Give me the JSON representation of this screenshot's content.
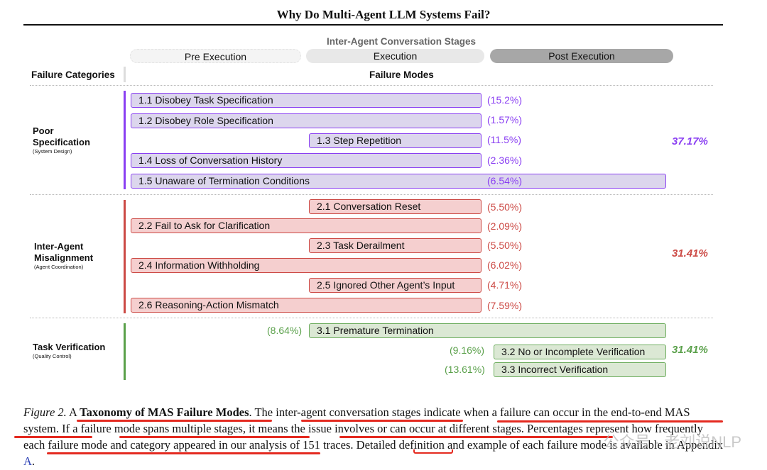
{
  "title": "Why Do Multi-Agent LLM Systems Fail?",
  "stages_header": "Inter-Agent Conversation Stages",
  "stages": [
    "Pre Execution",
    "Execution",
    "Post Execution"
  ],
  "col_failure_categories": "Failure Categories",
  "col_failure_modes": "Failure Modes",
  "categories": [
    {
      "name": "Poor Specification",
      "line1": "Poor",
      "line2": "Specification",
      "sub": "(System Design)",
      "total": "37.17%",
      "color": "#8a3ff2"
    },
    {
      "name": "Inter-Agent Misalignment",
      "line1": "Inter-Agent",
      "line2": "Misalignment",
      "sub": "(Agent Coordination)",
      "total": "31.41%",
      "color": "#cc4a45"
    },
    {
      "name": "Task Verification",
      "line1": "Task Verification",
      "sub": "(Quality Control)",
      "total": "31.41%",
      "color": "#5aa04a"
    }
  ],
  "modes": [
    {
      "label": "1.1 Disobey Task Specification",
      "pct": "(15.2%)"
    },
    {
      "label": "1.2 Disobey Role Specification",
      "pct": "(1.57%)"
    },
    {
      "label": "1.3 Step Repetition",
      "pct": "(11.5%)"
    },
    {
      "label": "1.4 Loss of Conversation History",
      "pct": "(2.36%)"
    },
    {
      "label": "1.5 Unaware of Termination Conditions",
      "pct": "(6.54%)"
    },
    {
      "label": "2.1 Conversation Reset",
      "pct": "(5.50%)"
    },
    {
      "label": "2.2 Fail to Ask for Clarification",
      "pct": "(2.09%)"
    },
    {
      "label": "2.3 Task Derailment",
      "pct": "(5.50%)"
    },
    {
      "label": "2.4 Information Withholding",
      "pct": "(6.02%)"
    },
    {
      "label": "2.5 Ignored Other Agent’s Input",
      "pct": "(4.71%)"
    },
    {
      "label": "2.6 Reasoning-Action Mismatch",
      "pct": "(7.59%)"
    },
    {
      "label": "3.1  Premature Termination",
      "pct": "(8.64%)"
    },
    {
      "label": "3.2 No or Incomplete Verification",
      "pct": "(9.16%)"
    },
    {
      "label": "3.3 Incorrect Verification",
      "pct": "(13.61%)"
    }
  ],
  "caption": {
    "fig_label": "Figure 2.",
    "a": "A",
    "bold": "Taxonomy of MAS Failure Modes",
    "text1": ". The inter-agent conversation stages indicate when a failure can occur in the end-to-end MAS system. If a failure mode spans multiple stages, it means the issue involves or can occur at different stages. Percentages represent how frequently each failure mode and category appeared in our analysis of 151 traces. Detailed definition and example of each failure mode is available in Appendix ",
    "appendix": "A",
    "end": "."
  },
  "watermark": "公众号 · 老刘说NLP"
}
